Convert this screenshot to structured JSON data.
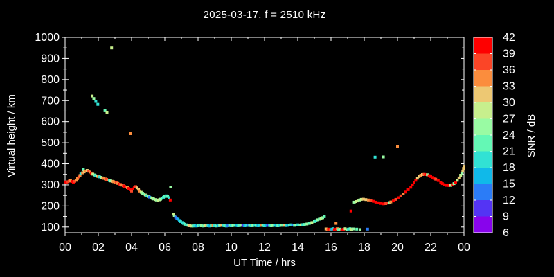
{
  "title": "2025-03-17. f = 2510 kHz",
  "colors": {
    "background": "#000000",
    "foreground": "#ffffff"
  },
  "axes": {
    "x_label": "UT Time / hrs",
    "y_label": "Virtual height / km",
    "x_tick_hours": [
      0,
      2,
      4,
      6,
      8,
      10,
      12,
      14,
      16,
      18,
      20,
      22,
      24
    ],
    "x_tick_labels": [
      "00",
      "02",
      "04",
      "06",
      "08",
      "10",
      "12",
      "14",
      "16",
      "18",
      "20",
      "22",
      "00"
    ],
    "x_minor_hours": [
      1,
      3,
      5,
      7,
      9,
      11,
      13,
      15,
      17,
      19,
      21,
      23
    ],
    "y_tick_values": [
      100,
      200,
      300,
      400,
      500,
      600,
      700,
      800,
      900,
      1000
    ],
    "y_tick_labels": [
      "100",
      "200",
      "300",
      "400",
      "500",
      "600",
      "700",
      "800",
      "900",
      "1000"
    ],
    "y_minor_values": [
      150,
      250,
      350,
      450,
      550,
      650,
      750,
      850,
      950
    ]
  },
  "colorbar": {
    "label": "SNR / dB",
    "min": 6,
    "max": 42,
    "tick_values": [
      6,
      9,
      12,
      15,
      18,
      21,
      24,
      27,
      30,
      33,
      36,
      39,
      42
    ],
    "tick_labels": [
      "6",
      "9",
      "12",
      "15",
      "18",
      "21",
      "24",
      "27",
      "30",
      "33",
      "36",
      "39",
      "42"
    ],
    "band_colors": [
      "#8804ec",
      "#5434f4",
      "#2b7cf7",
      "#10b9e9",
      "#31e2d4",
      "#64f8b5",
      "#99fba3",
      "#c7ef8d",
      "#edc873",
      "#fb8d3d",
      "#fb4527",
      "#fe0000"
    ]
  },
  "chart_data": {
    "type": "scatter",
    "title": "2025-03-17. f = 2510 kHz",
    "xlabel": "UT Time / hrs",
    "ylabel": "Virtual height / km",
    "colorbar_label": "SNR / dB",
    "xlim": [
      0,
      24
    ],
    "ylim": [
      73,
      1000
    ],
    "snr_range": [
      6,
      42
    ],
    "grid": false,
    "legend": "colorbar-right",
    "points_format": [
      "ut_hour",
      "virtual_height_km",
      "snr_db"
    ],
    "points": [
      [
        0.0,
        314,
        39
      ],
      [
        0.08,
        311,
        40
      ],
      [
        0.17,
        315,
        38
      ],
      [
        0.25,
        318,
        36
      ],
      [
        0.33,
        320,
        33
      ],
      [
        0.42,
        316,
        40
      ],
      [
        0.5,
        312,
        40
      ],
      [
        0.58,
        317,
        37
      ],
      [
        0.67,
        322,
        33
      ],
      [
        0.75,
        330,
        34
      ],
      [
        0.83,
        338,
        37
      ],
      [
        0.9,
        345,
        33
      ],
      [
        0.95,
        352,
        20
      ],
      [
        1.05,
        357,
        34
      ],
      [
        1.1,
        372,
        21
      ],
      [
        1.15,
        362,
        31
      ],
      [
        1.25,
        366,
        33
      ],
      [
        1.33,
        369,
        31
      ],
      [
        1.42,
        365,
        37
      ],
      [
        1.5,
        361,
        34
      ],
      [
        1.58,
        356,
        40
      ],
      [
        1.67,
        351,
        27
      ],
      [
        1.75,
        347,
        24
      ],
      [
        1.83,
        344,
        20
      ],
      [
        1.92,
        341,
        27
      ],
      [
        2.0,
        340,
        33
      ],
      [
        2.08,
        338,
        20
      ],
      [
        2.17,
        336,
        24
      ],
      [
        2.25,
        333,
        31
      ],
      [
        2.33,
        331,
        33
      ],
      [
        2.42,
        328,
        34
      ],
      [
        2.5,
        326,
        37
      ],
      [
        2.58,
        323,
        33
      ],
      [
        2.67,
        321,
        20
      ],
      [
        2.75,
        319,
        24
      ],
      [
        2.83,
        317,
        31
      ],
      [
        2.92,
        315,
        33
      ],
      [
        3.0,
        313,
        34
      ],
      [
        3.08,
        310,
        37
      ],
      [
        3.17,
        307,
        33
      ],
      [
        3.25,
        304,
        40
      ],
      [
        3.33,
        302,
        37
      ],
      [
        3.42,
        299,
        33
      ],
      [
        3.5,
        296,
        37
      ],
      [
        3.58,
        293,
        40
      ],
      [
        3.67,
        290,
        37
      ],
      [
        3.75,
        287,
        33
      ],
      [
        3.83,
        283,
        40
      ],
      [
        3.92,
        277,
        40
      ],
      [
        4.0,
        271,
        37
      ],
      [
        4.08,
        281,
        40
      ],
      [
        4.17,
        290,
        40
      ],
      [
        4.25,
        292,
        37
      ],
      [
        4.33,
        286,
        31
      ],
      [
        4.42,
        279,
        31
      ],
      [
        4.5,
        271,
        33
      ],
      [
        4.58,
        265,
        27
      ],
      [
        4.67,
        260,
        24
      ],
      [
        4.75,
        256,
        21
      ],
      [
        4.83,
        252,
        27
      ],
      [
        4.92,
        248,
        18
      ],
      [
        5.0,
        245,
        24
      ],
      [
        5.08,
        242,
        13
      ],
      [
        5.17,
        239,
        21
      ],
      [
        5.25,
        236,
        27
      ],
      [
        5.33,
        233,
        24
      ],
      [
        5.42,
        230,
        27
      ],
      [
        5.5,
        228,
        24
      ],
      [
        5.58,
        227,
        27
      ],
      [
        5.67,
        229,
        27
      ],
      [
        5.75,
        232,
        24
      ],
      [
        5.83,
        236,
        21
      ],
      [
        5.92,
        241,
        18
      ],
      [
        6.0,
        245,
        21
      ],
      [
        6.08,
        248,
        18
      ],
      [
        6.17,
        245,
        21
      ],
      [
        6.25,
        239,
        18
      ],
      [
        6.33,
        228,
        40
      ],
      [
        6.35,
        290,
        24
      ],
      [
        1.63,
        722,
        27
      ],
      [
        1.73,
        710,
        24
      ],
      [
        1.85,
        696,
        20
      ],
      [
        1.97,
        682,
        19
      ],
      [
        2.4,
        652,
        22
      ],
      [
        2.52,
        644,
        28
      ],
      [
        2.8,
        950,
        28
      ],
      [
        3.95,
        543,
        33
      ],
      [
        6.5,
        161,
        27
      ],
      [
        6.57,
        152,
        24
      ],
      [
        6.65,
        147,
        14
      ],
      [
        6.72,
        142,
        13
      ],
      [
        6.8,
        137,
        15
      ],
      [
        6.88,
        131,
        17
      ],
      [
        6.95,
        126,
        18
      ],
      [
        7.05,
        121,
        18
      ],
      [
        7.12,
        117,
        20
      ],
      [
        7.2,
        113,
        21
      ],
      [
        7.3,
        110,
        18
      ],
      [
        7.4,
        108,
        24
      ],
      [
        7.5,
        106,
        30
      ],
      [
        7.6,
        105,
        27
      ],
      [
        7.7,
        105,
        21
      ],
      [
        7.8,
        106,
        18
      ],
      [
        7.9,
        105,
        15
      ],
      [
        8.0,
        106,
        21
      ],
      [
        8.1,
        107,
        18
      ],
      [
        8.2,
        106,
        24
      ],
      [
        8.3,
        105,
        21
      ],
      [
        8.4,
        106,
        27
      ],
      [
        8.5,
        107,
        30
      ],
      [
        8.6,
        106,
        18
      ],
      [
        8.7,
        105,
        15
      ],
      [
        8.8,
        106,
        21
      ],
      [
        8.9,
        107,
        33
      ],
      [
        9.0,
        106,
        18
      ],
      [
        9.1,
        105,
        21
      ],
      [
        9.2,
        106,
        15
      ],
      [
        9.3,
        107,
        24
      ],
      [
        9.4,
        108,
        30
      ],
      [
        9.5,
        107,
        18
      ],
      [
        9.6,
        106,
        21
      ],
      [
        9.7,
        105,
        18
      ],
      [
        9.8,
        106,
        13
      ],
      [
        9.9,
        107,
        21
      ],
      [
        10.0,
        106,
        18
      ],
      [
        10.1,
        107,
        24
      ],
      [
        10.2,
        108,
        21
      ],
      [
        10.3,
        107,
        15
      ],
      [
        10.4,
        106,
        18
      ],
      [
        10.5,
        107,
        21
      ],
      [
        10.6,
        108,
        24
      ],
      [
        10.7,
        107,
        10
      ],
      [
        10.8,
        106,
        15
      ],
      [
        10.9,
        107,
        18
      ],
      [
        11.0,
        108,
        13
      ],
      [
        11.1,
        107,
        21
      ],
      [
        11.2,
        106,
        18
      ],
      [
        11.3,
        107,
        24
      ],
      [
        11.4,
        108,
        18
      ],
      [
        11.5,
        107,
        21
      ],
      [
        11.6,
        106,
        15
      ],
      [
        11.7,
        107,
        18
      ],
      [
        11.8,
        108,
        33
      ],
      [
        11.9,
        107,
        21
      ],
      [
        12.0,
        106,
        18
      ],
      [
        12.1,
        107,
        15
      ],
      [
        12.2,
        108,
        10
      ],
      [
        12.3,
        107,
        18
      ],
      [
        12.4,
        106,
        21
      ],
      [
        12.5,
        107,
        24
      ],
      [
        12.6,
        108,
        18
      ],
      [
        12.7,
        107,
        15
      ],
      [
        12.8,
        106,
        21
      ],
      [
        12.9,
        107,
        18
      ],
      [
        13.0,
        108,
        24
      ],
      [
        13.1,
        109,
        21
      ],
      [
        13.2,
        108,
        30
      ],
      [
        13.3,
        107,
        18
      ],
      [
        13.4,
        108,
        15
      ],
      [
        13.5,
        109,
        21
      ],
      [
        13.6,
        110,
        18
      ],
      [
        13.7,
        109,
        13
      ],
      [
        13.8,
        108,
        21
      ],
      [
        13.9,
        109,
        24
      ],
      [
        14.0,
        110,
        18
      ],
      [
        14.1,
        109,
        21
      ],
      [
        14.2,
        110,
        27
      ],
      [
        14.3,
        111,
        18
      ],
      [
        14.4,
        112,
        21
      ],
      [
        14.55,
        114,
        24
      ],
      [
        14.7,
        117,
        21
      ],
      [
        14.85,
        121,
        27
      ],
      [
        15.0,
        126,
        21
      ],
      [
        15.1,
        130,
        18
      ],
      [
        15.2,
        134,
        24
      ],
      [
        15.3,
        137,
        21
      ],
      [
        15.4,
        140,
        27
      ],
      [
        15.5,
        144,
        24
      ],
      [
        15.6,
        149,
        21
      ],
      [
        15.7,
        91,
        31
      ],
      [
        15.78,
        88,
        33
      ],
      [
        15.85,
        90,
        40
      ],
      [
        15.95,
        87,
        36
      ],
      [
        16.05,
        90,
        15
      ],
      [
        16.12,
        92,
        18
      ],
      [
        16.2,
        88,
        40
      ],
      [
        16.3,
        90,
        39
      ],
      [
        16.3,
        117,
        33
      ],
      [
        16.38,
        92,
        34
      ],
      [
        16.45,
        88,
        21
      ],
      [
        16.55,
        90,
        24
      ],
      [
        16.65,
        87,
        40
      ],
      [
        16.75,
        89,
        39
      ],
      [
        16.85,
        92,
        27
      ],
      [
        16.95,
        88,
        24
      ],
      [
        17.05,
        90,
        18
      ],
      [
        17.15,
        92,
        21
      ],
      [
        17.2,
        176,
        40
      ],
      [
        17.25,
        89,
        27
      ],
      [
        17.35,
        91,
        24
      ],
      [
        17.55,
        90,
        21
      ],
      [
        17.75,
        88,
        24
      ],
      [
        18.2,
        90,
        13
      ],
      [
        17.4,
        218,
        24
      ],
      [
        17.5,
        221,
        27
      ],
      [
        17.62,
        224,
        27
      ],
      [
        17.72,
        228,
        24
      ],
      [
        17.82,
        231,
        27
      ],
      [
        17.95,
        232,
        30
      ],
      [
        18.1,
        230,
        31
      ],
      [
        18.25,
        228,
        33
      ],
      [
        18.4,
        226,
        36
      ],
      [
        18.55,
        222,
        39
      ],
      [
        18.7,
        218,
        40
      ],
      [
        18.85,
        215,
        39
      ],
      [
        19.0,
        212,
        40
      ],
      [
        19.15,
        210,
        39
      ],
      [
        19.3,
        211,
        37
      ],
      [
        19.45,
        214,
        36
      ],
      [
        19.5,
        216,
        25
      ],
      [
        19.6,
        219,
        33
      ],
      [
        19.75,
        224,
        39
      ],
      [
        19.9,
        231,
        36
      ],
      [
        20.05,
        239,
        39
      ],
      [
        20.2,
        248,
        36
      ],
      [
        20.35,
        257,
        34
      ],
      [
        20.5,
        266,
        40
      ],
      [
        20.65,
        277,
        39
      ],
      [
        20.8,
        289,
        40
      ],
      [
        20.9,
        300,
        39
      ],
      [
        21.0,
        311,
        40
      ],
      [
        21.1,
        322,
        39
      ],
      [
        21.2,
        332,
        30
      ],
      [
        21.3,
        340,
        31
      ],
      [
        21.4,
        346,
        33
      ],
      [
        21.5,
        349,
        31
      ],
      [
        21.6,
        350,
        36
      ],
      [
        21.7,
        349,
        39
      ],
      [
        21.8,
        348,
        25
      ],
      [
        21.9,
        344,
        40
      ],
      [
        22.0,
        340,
        39
      ],
      [
        22.1,
        335,
        40
      ],
      [
        22.2,
        331,
        39
      ],
      [
        22.3,
        327,
        37
      ],
      [
        22.45,
        321,
        40
      ],
      [
        22.6,
        313,
        40
      ],
      [
        22.7,
        306,
        40
      ],
      [
        22.8,
        301,
        40
      ],
      [
        22.95,
        298,
        39
      ],
      [
        23.1,
        297,
        40
      ],
      [
        23.2,
        298,
        27
      ],
      [
        23.3,
        301,
        39
      ],
      [
        23.4,
        306,
        24
      ],
      [
        23.5,
        313,
        40
      ],
      [
        23.6,
        322,
        27
      ],
      [
        23.7,
        333,
        30
      ],
      [
        23.8,
        346,
        27
      ],
      [
        23.87,
        356,
        24
      ],
      [
        23.93,
        366,
        30
      ],
      [
        23.97,
        378,
        31
      ],
      [
        24.0,
        388,
        31
      ],
      [
        18.65,
        432,
        20
      ],
      [
        19.15,
        433,
        24
      ],
      [
        20.0,
        482,
        34
      ]
    ]
  }
}
